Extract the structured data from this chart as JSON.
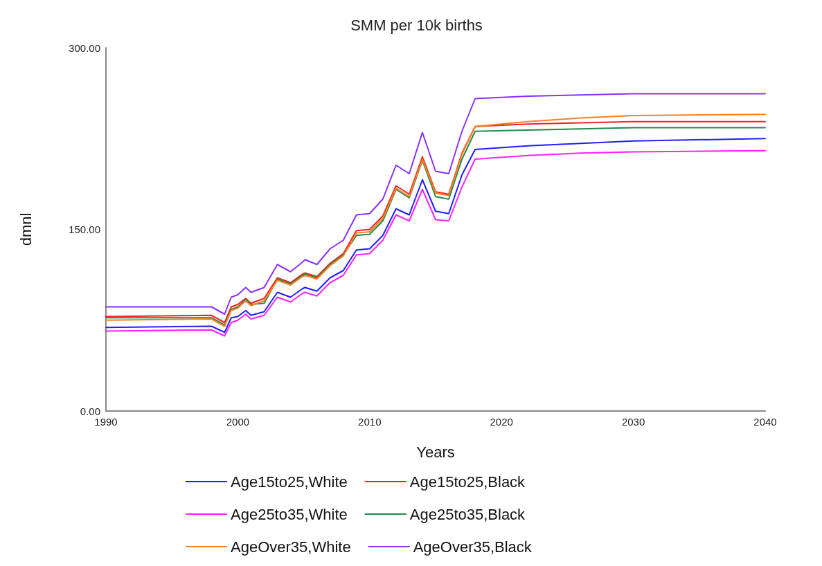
{
  "chart_data": {
    "type": "line",
    "title": "SMM per 10k births",
    "xlabel": "Years",
    "ylabel": "dmnl",
    "x": [
      1990,
      1998,
      1999,
      1999.5,
      2000,
      2000.6,
      2001,
      2002,
      2003,
      2004,
      2004.9,
      2005.1,
      2006,
      2007,
      2008,
      2009,
      2010,
      2011,
      2012,
      2013,
      2014,
      2015,
      2016,
      2017,
      2018,
      2022,
      2026,
      2030,
      2040
    ],
    "xlim": [
      1990,
      2040
    ],
    "xticks": [
      1990,
      2000,
      2010,
      2020,
      2030,
      2040
    ],
    "ylim": [
      0,
      300
    ],
    "yticks": [
      {
        "value": 0,
        "label": "0.00"
      },
      {
        "value": 150,
        "label": "150.00"
      },
      {
        "value": 300,
        "label": "300.00"
      }
    ],
    "grid": false,
    "legend": "bottom",
    "marker": "none",
    "line_style": "solid",
    "series": [
      {
        "name": "Age15to25,White",
        "color": "#1f1fff",
        "values": [
          69,
          70,
          65,
          77,
          78,
          83,
          79,
          82,
          98,
          94,
          101,
          102,
          99,
          110,
          116,
          133,
          134,
          145,
          167,
          162,
          191,
          165,
          163,
          195,
          216,
          219,
          221,
          223,
          225
        ]
      },
      {
        "name": "Age15to25,Black",
        "color": "#ff1f1f",
        "values": [
          78,
          79,
          73,
          86,
          88,
          93,
          89,
          93,
          110,
          106,
          113,
          114,
          111,
          122,
          130,
          149,
          150,
          161,
          186,
          179,
          210,
          181,
          179,
          213,
          235,
          237,
          238,
          239,
          239
        ]
      },
      {
        "name": "Age25to35,White",
        "color": "#ff1fff",
        "values": [
          66,
          67,
          62,
          73,
          75,
          80,
          76,
          79,
          94,
          90,
          97,
          98,
          95,
          106,
          112,
          129,
          130,
          141,
          162,
          157,
          183,
          158,
          157,
          185,
          208,
          211,
          213,
          214,
          215
        ]
      },
      {
        "name": "Age25to35,Black",
        "color": "#1f8a4a",
        "values": [
          77,
          77,
          71,
          84,
          86,
          92,
          88,
          89,
          109,
          105,
          112,
          113,
          110,
          121,
          129,
          145,
          146,
          157,
          183,
          176,
          207,
          177,
          175,
          208,
          231,
          232,
          233,
          234,
          234
        ]
      },
      {
        "name": "AgeOver35,White",
        "color": "#ff7f1f",
        "values": [
          75,
          76,
          70,
          83,
          85,
          91,
          87,
          91,
          108,
          104,
          111,
          112,
          109,
          120,
          128,
          147,
          148,
          159,
          184,
          177,
          208,
          180,
          178,
          212,
          235,
          239,
          242,
          244,
          245
        ]
      },
      {
        "name": "AgeOver35,Black",
        "color": "#8a2fff",
        "values": [
          86,
          86,
          80,
          94,
          96,
          102,
          98,
          102,
          121,
          115,
          123,
          125,
          121,
          134,
          141,
          162,
          163,
          175,
          203,
          196,
          230,
          198,
          196,
          231,
          258,
          260,
          261,
          262,
          262
        ]
      }
    ]
  }
}
